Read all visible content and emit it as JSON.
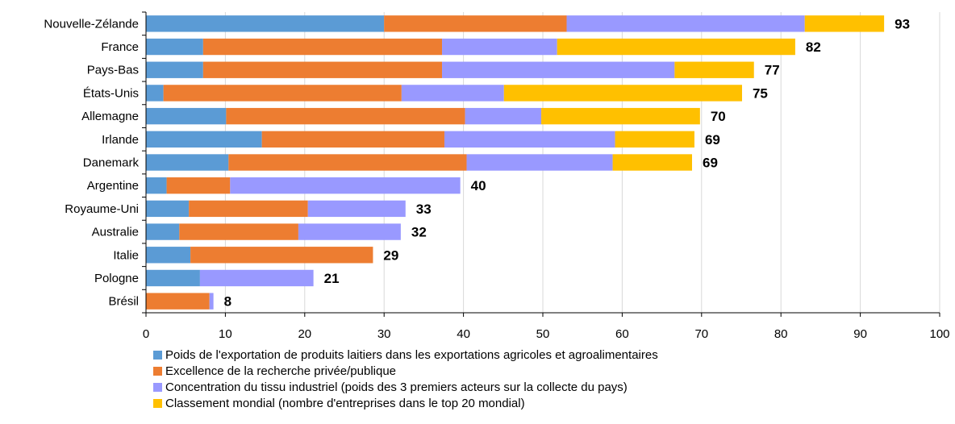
{
  "chart_data": {
    "type": "bar",
    "orientation": "horizontal",
    "stacked": true,
    "categories": [
      "Nouvelle-Zélande",
      "France",
      "Pays-Bas",
      "États-Unis",
      "Allemagne",
      "Irlande",
      "Danemark",
      "Argentine",
      "Royaume-Uni",
      "Australie",
      "Italie",
      "Pologne",
      "Brésil"
    ],
    "series": [
      {
        "name": "Poids de l'exportation de produits laitiers dans les exportations agricoles et agroalimentaires",
        "color": "#5B9BD5",
        "values": [
          30,
          7.2,
          7.2,
          2.2,
          10.1,
          14.6,
          10.4,
          2.6,
          5.4,
          4.2,
          5.6,
          6.8,
          0
        ]
      },
      {
        "name": "Excellence de la recherche privée/publique",
        "color": "#ED7D31",
        "values": [
          23,
          30.1,
          30.1,
          30,
          30.1,
          23,
          30,
          8,
          15,
          15,
          23,
          0,
          8
        ]
      },
      {
        "name": "Concentration du tissu industriel (poids des 3 premiers acteurs sur la collecte du pays)",
        "color": "#9999FF",
        "values": [
          30,
          14.5,
          29.3,
          12.9,
          9.6,
          21.5,
          18.4,
          29,
          12.3,
          12.9,
          0,
          14.3,
          0.5
        ]
      },
      {
        "name": "Classement mondial (nombre d'entreprises dans le top 20 mondial)",
        "color": "#FFC000",
        "values": [
          10,
          30,
          10,
          30,
          20,
          10,
          10,
          0,
          0,
          0,
          0,
          0,
          0
        ]
      }
    ],
    "totals": [
      "93",
      "82",
      "77",
      "75",
      "70",
      "69",
      "69",
      "40",
      "33",
      "32",
      "29",
      "21",
      "8"
    ],
    "xlim": [
      0,
      100
    ],
    "xticks": [
      "0",
      "10",
      "20",
      "30",
      "40",
      "50",
      "60",
      "70",
      "80",
      "90",
      "100"
    ],
    "grid": true,
    "legend_position": "bottom"
  }
}
